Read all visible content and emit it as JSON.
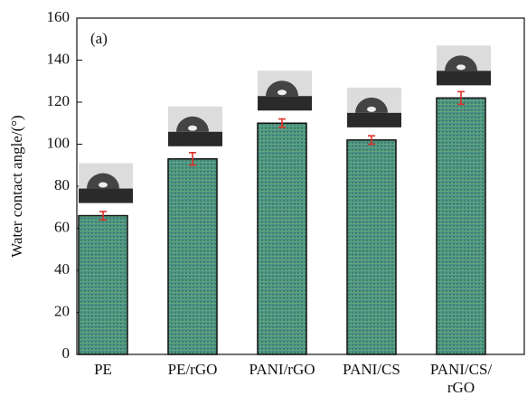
{
  "chart_data": {
    "type": "bar",
    "annotation": "(a)",
    "y_label": "Water contact angle/(°)",
    "categories": [
      "PE",
      "PE/rGO",
      "PANI/rGO",
      "PANI/CS",
      "PANI/CS/rGO"
    ],
    "values": [
      66,
      93,
      110,
      102,
      122
    ],
    "errors": [
      2,
      3,
      2,
      2,
      3
    ],
    "color": "#4a9a8a",
    "error_color": "#e0302a",
    "ylim": [
      0,
      160
    ],
    "yticks": [
      0,
      20,
      40,
      60,
      80,
      100,
      120,
      140,
      160
    ]
  }
}
